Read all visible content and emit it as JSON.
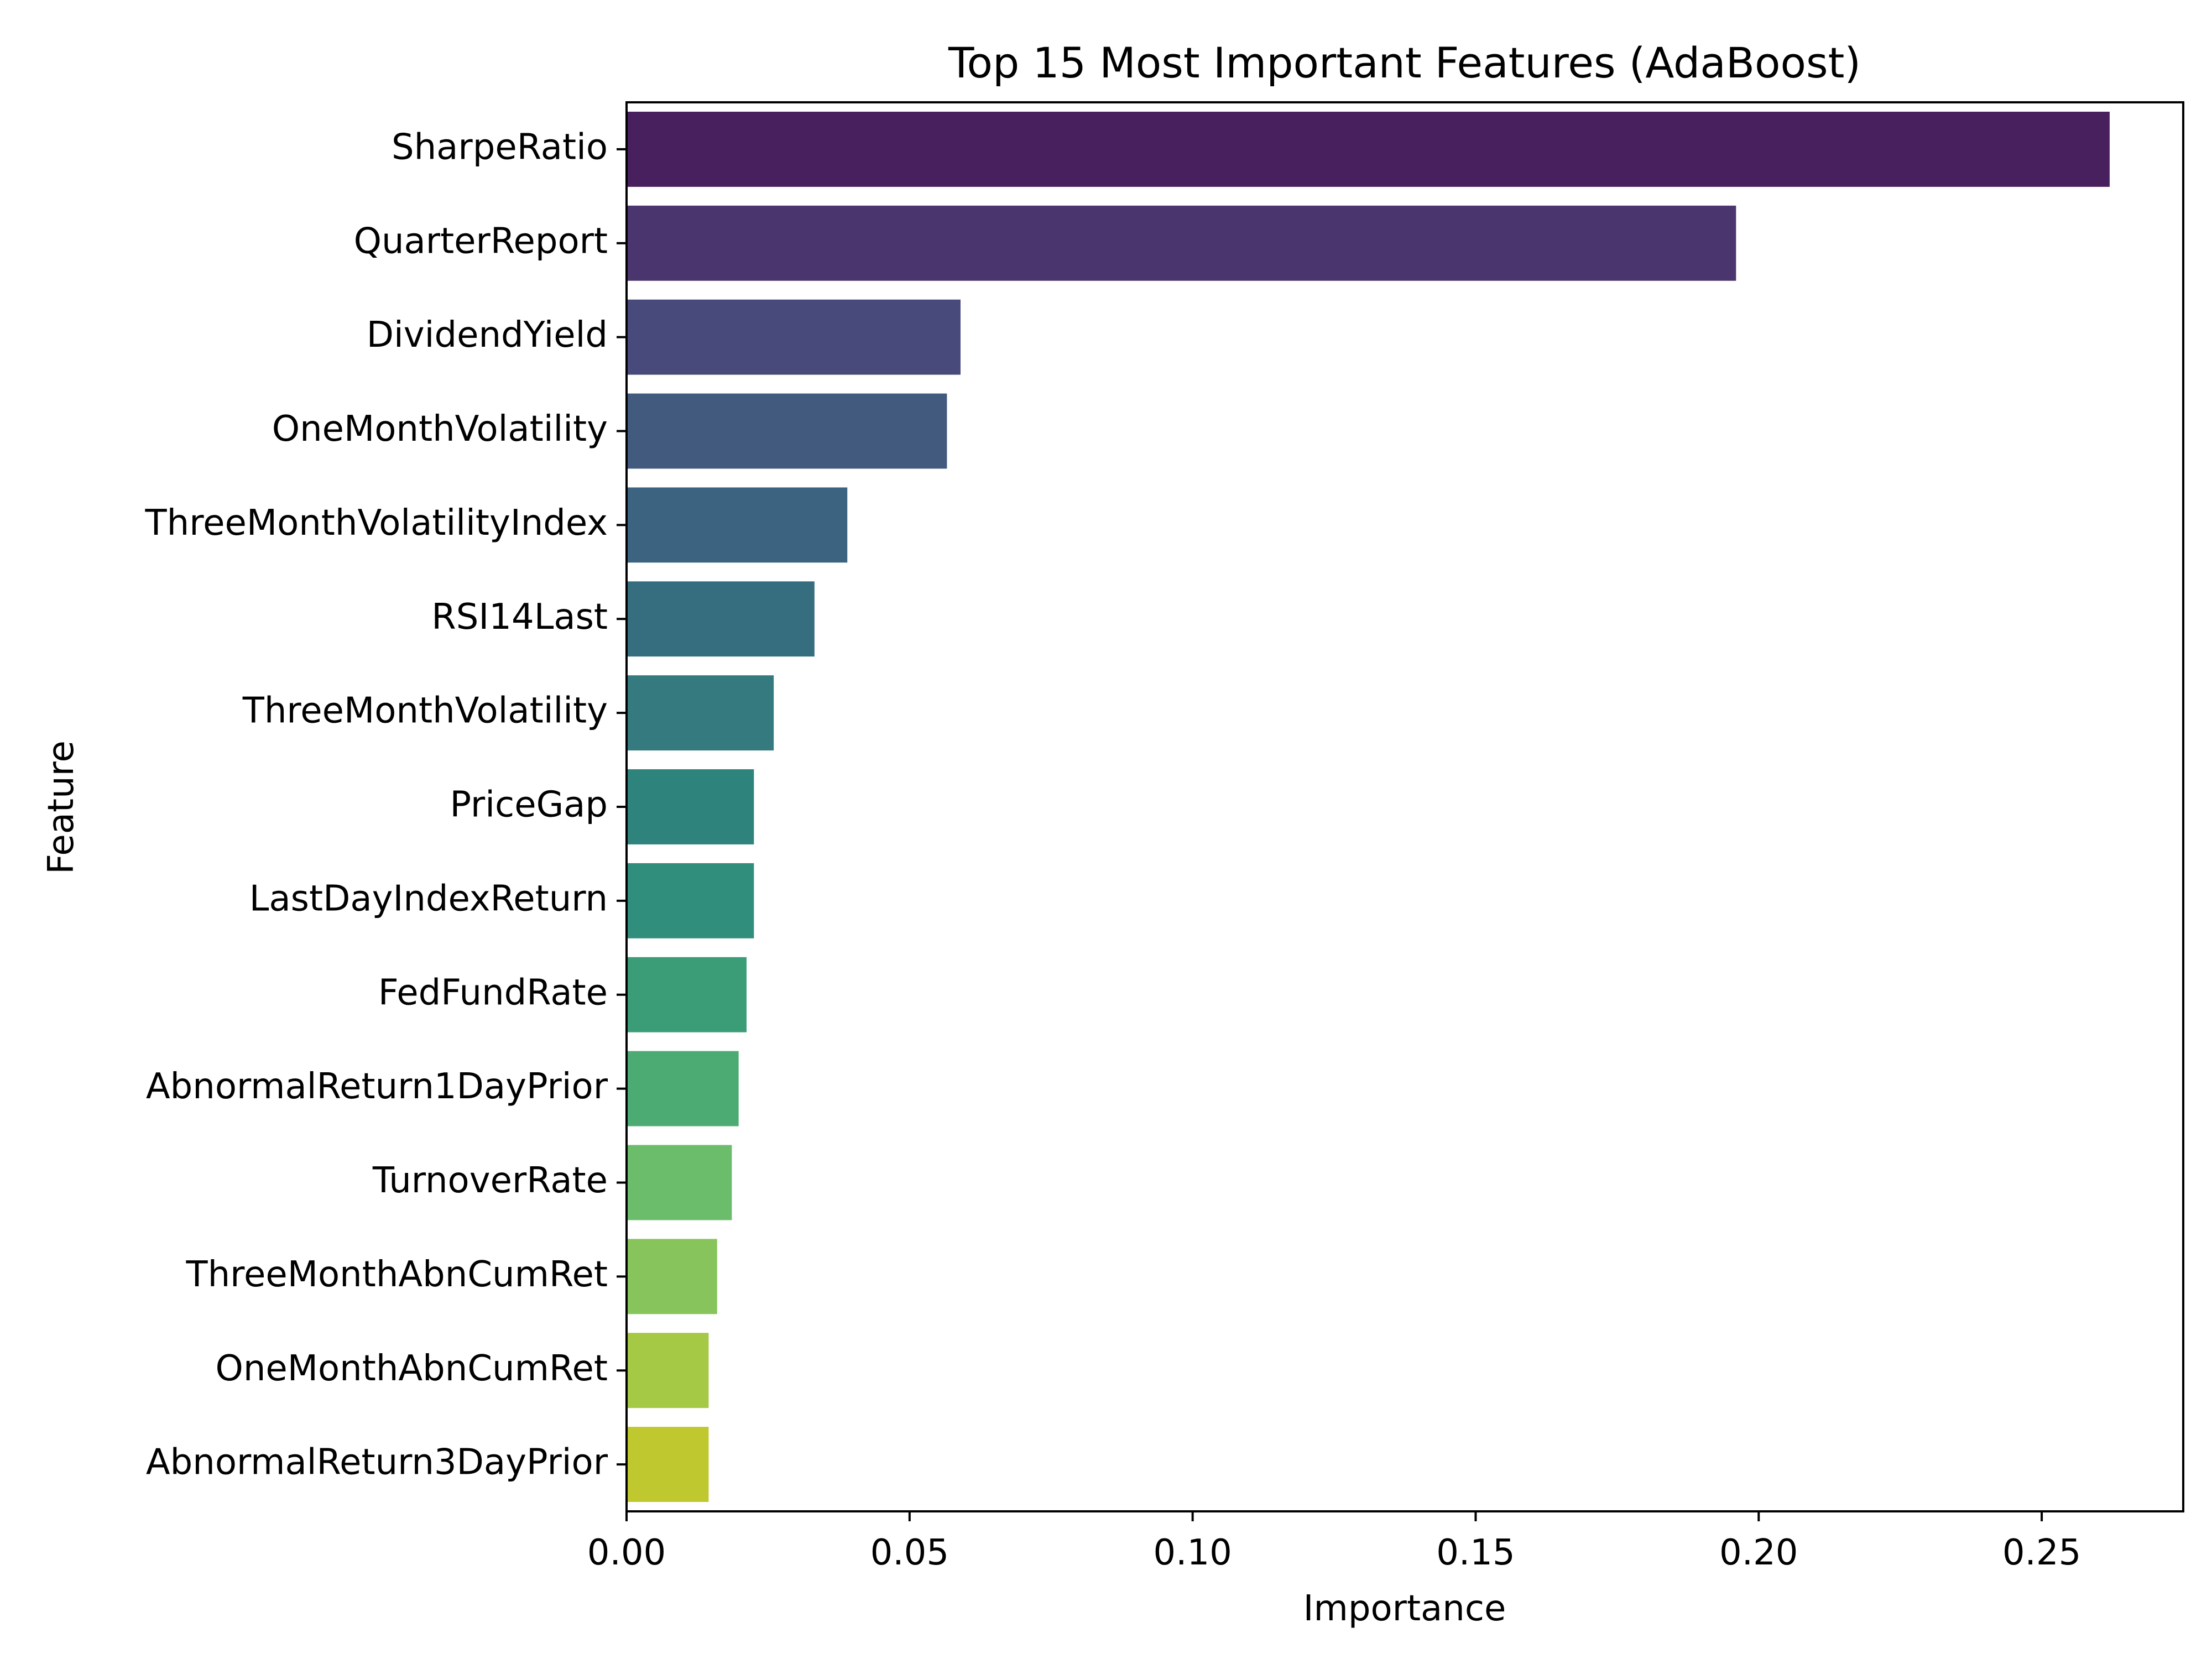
{
  "chart_data": {
    "type": "bar",
    "orientation": "horizontal",
    "title": "Top 15 Most Important Features (AdaBoost)",
    "xlabel": "Importance",
    "ylabel": "Feature",
    "xlim": [
      0,
      0.275
    ],
    "xticks": [
      0.0,
      0.05,
      0.1,
      0.15,
      0.2,
      0.25
    ],
    "xtick_labels": [
      "0.00",
      "0.05",
      "0.10",
      "0.15",
      "0.20",
      "0.25"
    ],
    "grid": false,
    "categories": [
      "SharpeRatio",
      "QuarterReport",
      "DividendYield",
      "OneMonthVolatility",
      "ThreeMonthVolatilityIndex",
      "RSI14Last",
      "ThreeMonthVolatility",
      "PriceGap",
      "LastDayIndexReturn",
      "FedFundRate",
      "AbnormalReturn1DayPrior",
      "TurnoverRate",
      "ThreeMonthAbnCumRet",
      "OneMonthAbnCumRet",
      "AbnormalReturn3DayPrior"
    ],
    "values": [
      0.262,
      0.196,
      0.059,
      0.0566,
      0.039,
      0.0332,
      0.026,
      0.0225,
      0.0225,
      0.0212,
      0.0198,
      0.0186,
      0.016,
      0.0145,
      0.0145
    ],
    "colors": [
      "#48205d",
      "#4b356e",
      "#474a7b",
      "#425a7e",
      "#3c6480",
      "#376e7f",
      "#347a7f",
      "#2e847d",
      "#2f8e7c",
      "#3a9d78",
      "#4cab73",
      "#6bbd6c",
      "#88c45c",
      "#a5c845",
      "#c0c82f"
    ]
  }
}
